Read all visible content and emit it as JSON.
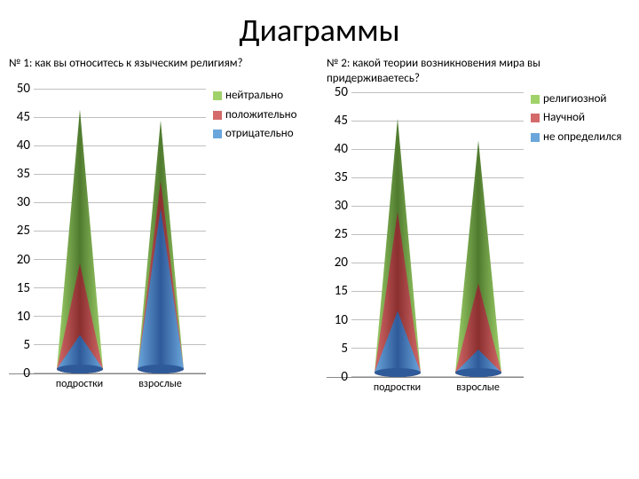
{
  "title": "Диаграммы",
  "palette": {
    "series1_light": "#6aa6db",
    "series1_dark": "#2f5a9a",
    "series2_light": "#d46a6a",
    "series2_dark": "#8b2f2f",
    "series3_light": "#a0d26a",
    "series3_dark": "#4f7a2f"
  },
  "axis": {
    "ymax": 50,
    "ymin": 0,
    "ytick_step": 5,
    "grid_color": "#bfbfbf",
    "axis_fontsize": 15
  },
  "chart1": {
    "title": "№ 1: как вы относитесь к языческим религиям?",
    "categories": [
      "подростки",
      "взрослые"
    ],
    "series": [
      {
        "label": "нейтрально",
        "color_key": "series3"
      },
      {
        "label": "положительно",
        "color_key": "series2"
      },
      {
        "label": "отрицательно",
        "color_key": "series1"
      }
    ],
    "data": {
      "подростки": {
        "отрицательно": 7,
        "положительно": 20,
        "нейтрально": 48
      },
      "взрослые": {
        "отрицательно": 30,
        "положительно": 35,
        "нейтрально": 46
      }
    }
  },
  "chart2": {
    "title": "№ 2: какой теории возникновения мира вы придерживаетесь?",
    "categories": [
      "подростки",
      "взрослые"
    ],
    "series": [
      {
        "label": "религиозной",
        "color_key": "series3"
      },
      {
        "label": "Научной",
        "color_key": "series2"
      },
      {
        "label": "не определился",
        "color_key": "series1"
      }
    ],
    "data": {
      "подростки": {
        "не определился": 12,
        "Научной": 30,
        "религиозной": 47
      },
      "взрослые": {
        "не определился": 5,
        "Научной": 17,
        "религиозной": 43
      }
    }
  }
}
